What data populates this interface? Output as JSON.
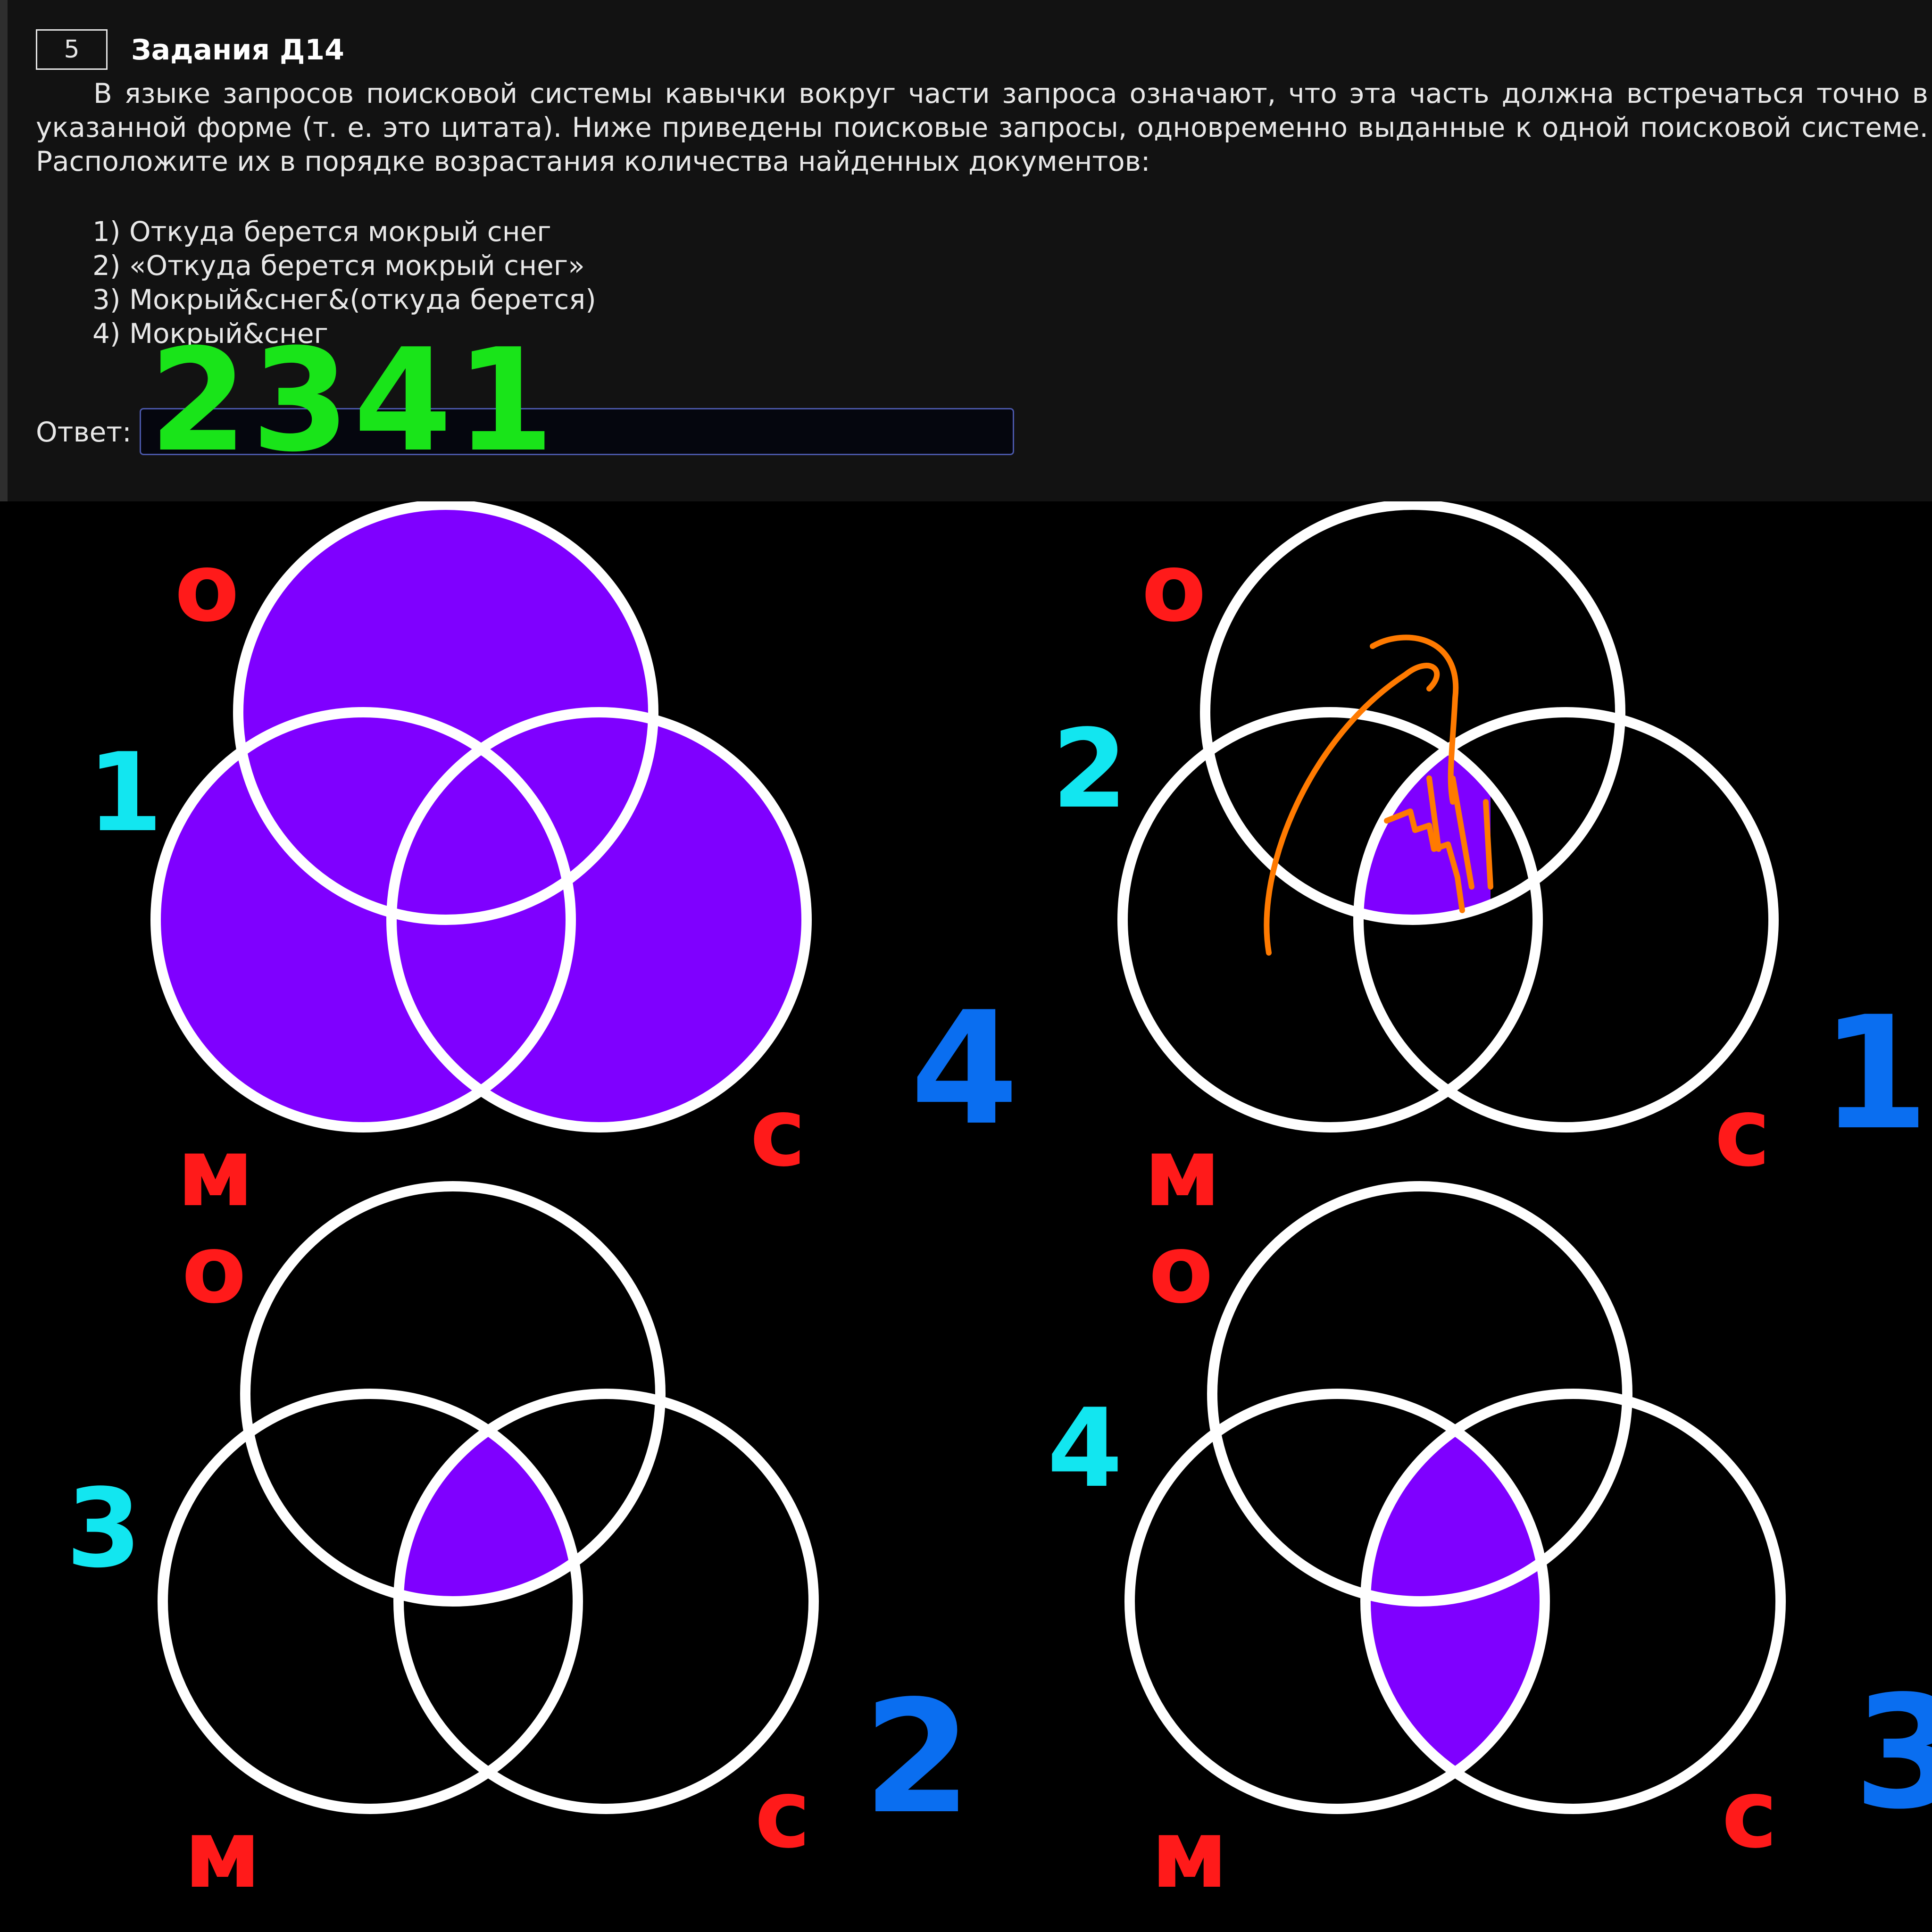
{
  "task": {
    "number": "5",
    "title": "Задания Д14",
    "text": "В языке запросов поисковой системы кавычки вокруг части запроса означают, что эта часть должна встречаться точно в указанной форме (т. е. это цитата). Ниже приведены поисковые запросы, одновременно выданные к одной поисковой системе. Расположите их в порядке возрастания количества найденных документов:",
    "queries": [
      "1) Откуда берется мокрый снег",
      "2) «Откуда берется мокрый снег»",
      "3) Мокрый&снег&(откуда берется)",
      "4) Мокрый&снег"
    ],
    "answer_label": "Ответ:",
    "answer_value": "",
    "handwritten_answer": "2341"
  },
  "diagrams": [
    {
      "query_mark": "1",
      "order_mark": "4",
      "shading": "union",
      "circle_labels": [
        "о",
        "м",
        "с"
      ]
    },
    {
      "query_mark": "2",
      "order_mark": "1",
      "shading": "exact-phrase",
      "circle_labels": [
        "о",
        "м",
        "с"
      ]
    },
    {
      "query_mark": "3",
      "order_mark": "2",
      "shading": "all-three",
      "circle_labels": [
        "о",
        "м",
        "с"
      ]
    },
    {
      "query_mark": "4",
      "order_mark": "3",
      "shading": "m-and-s",
      "circle_labels": [
        "о",
        "м",
        "с"
      ]
    }
  ],
  "colors": {
    "fill": "#7f00ff",
    "circle_stroke": "#ffffff",
    "set_label": "#ff1a1a",
    "query_mark": "#12e6f0",
    "order_mark": "#0a6ef0",
    "handwritten_answer": "#19e419",
    "annotation": "#ff7a00"
  }
}
